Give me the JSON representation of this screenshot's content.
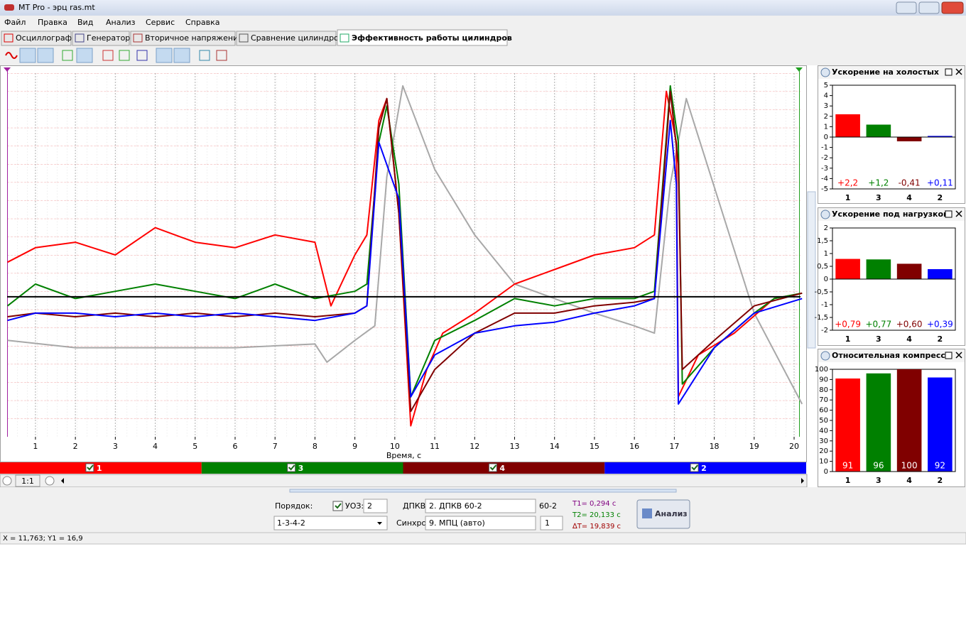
{
  "window": {
    "title": "MT Pro - эрц ras.mt"
  },
  "menu": [
    "Файл",
    "Правка",
    "Вид",
    "Анализ",
    "Сервис",
    "Справка"
  ],
  "tabs": [
    "Осциллограф",
    "Генератор",
    "Вторичное напряжение",
    "Сравнение цилиндров",
    "Эффективность работы цилиндров"
  ],
  "chart_data": [
    {
      "type": "line",
      "x_label": "Время, с",
      "xlim": [
        0.29,
        20.16
      ],
      "ylim": [
        -7.7,
        12.3
      ],
      "xticks": [
        1,
        2,
        3,
        4,
        5,
        6,
        7,
        8,
        9,
        10,
        11,
        12,
        13,
        14,
        15,
        16,
        17,
        18,
        19,
        20
      ],
      "grid": true,
      "series": [
        {
          "color": "#a8a8a8",
          "x": [
            0.3,
            2,
            4,
            6,
            8,
            8.3,
            9,
            9.5,
            9.8,
            10.2,
            11,
            12,
            13,
            14,
            15,
            16,
            16.5,
            16.9,
            17.3,
            19,
            20.2
          ],
          "values": [
            -2.4,
            -2.8,
            -2.8,
            -2.8,
            -2.6,
            -3.6,
            -2.4,
            -1.6,
            6.6,
            11.6,
            7.0,
            3.4,
            0.7,
            -0.1,
            -0.9,
            -1.6,
            -2.0,
            6.2,
            10.9,
            -0.9,
            -5.9
          ]
        },
        {
          "name": "1",
          "color": "#ff0000",
          "x": [
            0.3,
            1,
            2,
            3,
            4,
            5,
            6,
            7,
            8,
            8.4,
            9,
            9.3,
            9.6,
            9.8,
            10.1,
            10.4,
            10.8,
            11.2,
            12,
            13,
            14,
            15,
            16,
            16.5,
            16.8,
            17.05,
            17.1,
            17.6,
            18.5,
            19.5,
            20.2
          ],
          "values": [
            1.9,
            2.7,
            3.0,
            2.3,
            3.8,
            3.0,
            2.7,
            3.4,
            3.0,
            -0.5,
            2.3,
            3.4,
            9.7,
            10.9,
            4.6,
            -7.1,
            -4.0,
            -2.0,
            -0.9,
            0.7,
            1.5,
            2.3,
            2.7,
            3.4,
            11.3,
            8.5,
            -5.5,
            -3.2,
            -2.0,
            -0.1,
            0.2
          ]
        },
        {
          "name": "3",
          "color": "#008000",
          "x": [
            0.3,
            1,
            2,
            3,
            4,
            5,
            6,
            7,
            8,
            9,
            9.3,
            9.6,
            9.8,
            10.1,
            10.4,
            11,
            12,
            13,
            14,
            15,
            16,
            16.5,
            16.9,
            17.1,
            17.2,
            18,
            19,
            19.5,
            20.2
          ],
          "values": [
            -0.5,
            0.7,
            -0.1,
            0.3,
            0.7,
            0.3,
            -0.1,
            0.7,
            -0.1,
            0.3,
            0.7,
            8.5,
            10.5,
            6.2,
            -5.5,
            -2.4,
            -1.3,
            -0.1,
            -0.5,
            -0.1,
            -0.1,
            0.3,
            11.6,
            8.5,
            -4.8,
            -2.8,
            -0.9,
            -0.1,
            0.2
          ]
        },
        {
          "name": "4",
          "color": "#800000",
          "x": [
            0.3,
            1,
            2,
            3,
            4,
            5,
            6,
            7,
            8,
            9,
            9.3,
            9.6,
            9.8,
            10.1,
            10.4,
            11,
            12,
            13,
            14,
            15,
            16,
            16.5,
            16.9,
            17.1,
            17.2,
            18,
            19,
            20.2
          ],
          "values": [
            -1.1,
            -0.9,
            -1.1,
            -0.9,
            -1.1,
            -0.9,
            -1.1,
            -0.9,
            -1.1,
            -0.9,
            -0.5,
            9.3,
            10.9,
            4.6,
            -6.3,
            -4.0,
            -2.0,
            -0.9,
            -0.9,
            -0.5,
            -0.3,
            -0.1,
            11.3,
            7.3,
            -4.0,
            -2.4,
            -0.5,
            0.2
          ]
        },
        {
          "name": "2",
          "color": "#0000ff",
          "x": [
            0.3,
            1,
            2,
            3,
            4,
            5,
            6,
            7,
            8,
            9,
            9.3,
            9.6,
            10.1,
            10.4,
            11,
            12,
            13,
            14,
            15,
            16,
            16.5,
            16.9,
            17.05,
            17.1,
            18,
            19,
            20.2
          ],
          "values": [
            -1.3,
            -0.9,
            -0.9,
            -1.1,
            -0.9,
            -1.1,
            -0.9,
            -1.1,
            -1.3,
            -0.9,
            -0.5,
            8.5,
            5.4,
            -5.5,
            -3.2,
            -2.0,
            -1.6,
            -1.4,
            -0.9,
            -0.5,
            -0.1,
            9.7,
            6.2,
            -5.9,
            -2.8,
            -0.9,
            -0.1
          ]
        }
      ]
    },
    {
      "type": "bar",
      "title": "Ускорение на холостых",
      "categories": [
        "1",
        "3",
        "4",
        "2"
      ],
      "values": [
        2.2,
        1.2,
        -0.41,
        0.11
      ],
      "value_labels": [
        "+2,2",
        "+1,2",
        "-0,41",
        "+0,11"
      ],
      "colors": [
        "#ff0000",
        "#008000",
        "#800000",
        "#0000ff"
      ],
      "ylim": [
        -5,
        5
      ],
      "yticks": [
        -5,
        -4,
        -3,
        -2,
        -1,
        0,
        1,
        2,
        3,
        4,
        5
      ]
    },
    {
      "type": "bar",
      "title": "Ускорение под нагрузкой",
      "categories": [
        "1",
        "3",
        "4",
        "2"
      ],
      "values": [
        0.79,
        0.77,
        0.6,
        0.39
      ],
      "value_labels": [
        "+0,79",
        "+0,77",
        "+0,60",
        "+0,39"
      ],
      "colors": [
        "#ff0000",
        "#008000",
        "#800000",
        "#0000ff"
      ],
      "ylim": [
        -2,
        2
      ],
      "yticks": [
        -2,
        {
          "value": -1.5,
          "label": "-1,5"
        },
        -1,
        {
          "value": -0.5,
          "label": "-0,5"
        },
        0,
        {
          "value": 0.5,
          "label": "0,5"
        },
        1,
        {
          "value": 1.5,
          "label": "1,5"
        },
        2
      ]
    },
    {
      "type": "bar",
      "title": "Относительная компресси",
      "categories": [
        "1",
        "3",
        "4",
        "2"
      ],
      "values": [
        91,
        96,
        100,
        92
      ],
      "colors": [
        "#ff0000",
        "#008000",
        "#800000",
        "#0000ff"
      ],
      "value_label_color": "#ffffff",
      "ylim": [
        0,
        100
      ],
      "yticks": [
        0,
        10,
        20,
        30,
        40,
        50,
        60,
        70,
        80,
        90,
        100
      ]
    }
  ],
  "controls": {
    "order_label": "Порядок:",
    "order_value": "1-3-4-2",
    "uoz_label": "УОЗ:",
    "uoz_value": "2",
    "dpkv_label": "ДПКВ:",
    "dpkv_value": "2. ДПКВ 60-2",
    "dpkv_teeth": "60-2",
    "sync_label": "Синхро:",
    "sync_value": "9. МПЦ (авто)",
    "sync_channel": "1",
    "t1": "T1= 0,294 с",
    "t2": "T2= 20,133 с",
    "dt": "∆T= 19,839 с",
    "analyze": "Анализ",
    "zoom": "1:1"
  },
  "status_bar": "X = 11,763; Y1 = 16,9"
}
